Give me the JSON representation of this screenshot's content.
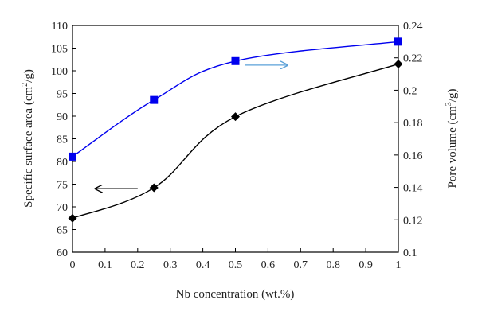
{
  "chart_data": {
    "type": "line",
    "x": [
      0,
      0.25,
      0.5,
      1
    ],
    "xlim": [
      0,
      1
    ],
    "xticks": [
      "0",
      "0.1",
      "0.2",
      "0.3",
      "0.4",
      "0.5",
      "0.6",
      "0.7",
      "0.8",
      "0.9",
      "1"
    ],
    "xlabel": "Nb concentration (wt.%)",
    "y_left": {
      "label_main": "Specific surface area (cm",
      "label_sup": "2",
      "label_tail": "/g)",
      "ylim": [
        60,
        110
      ],
      "ticks": [
        "60",
        "65",
        "70",
        "75",
        "80",
        "85",
        "90",
        "95",
        "100",
        "105",
        "110"
      ]
    },
    "y_right": {
      "label_main": "Pore volume (cm",
      "label_sup": "3",
      "label_tail": "/g)",
      "ylim": [
        0.1,
        0.24
      ],
      "ticks": [
        "0.1",
        "0.12",
        "0.14",
        "0.16",
        "0.18",
        "0.2",
        "0.22",
        "0.24"
      ]
    },
    "series": [
      {
        "axis": "left",
        "marker": "diamond",
        "color": "#000000",
        "values": [
          67.5,
          74.2,
          89.9,
          101.5
        ]
      },
      {
        "axis": "right",
        "marker": "square",
        "color": "#0000ee",
        "values": [
          0.159,
          0.194,
          0.218,
          0.23
        ]
      }
    ],
    "annotations": [
      {
        "type": "arrow",
        "direction": "left",
        "color": "#000000",
        "x_from": 0.2,
        "x_to": 0.07,
        "axis": "left",
        "y": 74
      },
      {
        "type": "arrow",
        "direction": "right",
        "color": "#5aa0d8",
        "x_from": 0.53,
        "x_to": 0.66,
        "axis": "right",
        "y": 0.2155
      }
    ],
    "grid": false
  }
}
